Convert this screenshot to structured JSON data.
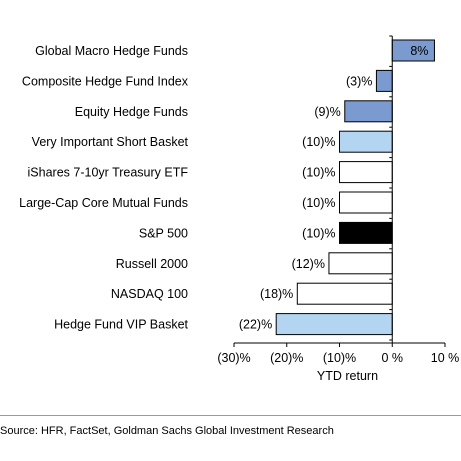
{
  "chart_data": {
    "type": "bar",
    "orientation": "horizontal",
    "categories": [
      "Global Macro Hedge Funds",
      "Composite Hedge Fund Index",
      "Equity Hedge Funds",
      "Very Important Short Basket",
      "iShares 7-10yr Treasury ETF",
      "Large-Cap Core Mutual Funds",
      "S&P 500",
      "Russell 2000",
      "NASDAQ 100",
      "Hedge Fund VIP Basket"
    ],
    "values": [
      8,
      -3,
      -9,
      -10,
      -10,
      -10,
      -10,
      -12,
      -18,
      -22
    ],
    "data_labels": [
      "8%",
      "(3)%",
      "(9)%",
      "(10)%",
      "(10)%",
      "(10)%",
      "(10)%",
      "(12)%",
      "(18)%",
      "(22)%"
    ],
    "bar_colors": [
      "#7b9bd0",
      "#7b9bd0",
      "#7b9bd0",
      "#b3d5f2",
      "#ffffff",
      "#ffffff",
      "#000000",
      "#ffffff",
      "#ffffff",
      "#b3d5f2"
    ],
    "xlabel": "YTD return",
    "xlim": [
      -30,
      10
    ],
    "xticks": [
      -30,
      -20,
      -10,
      0,
      10
    ],
    "xtick_labels": [
      "(30)%",
      "(20)%",
      "(10)%",
      "0 %",
      "10 %"
    ],
    "grid": false
  },
  "source": "Source: HFR, FactSet, Goldman Sachs Global Investment Research"
}
